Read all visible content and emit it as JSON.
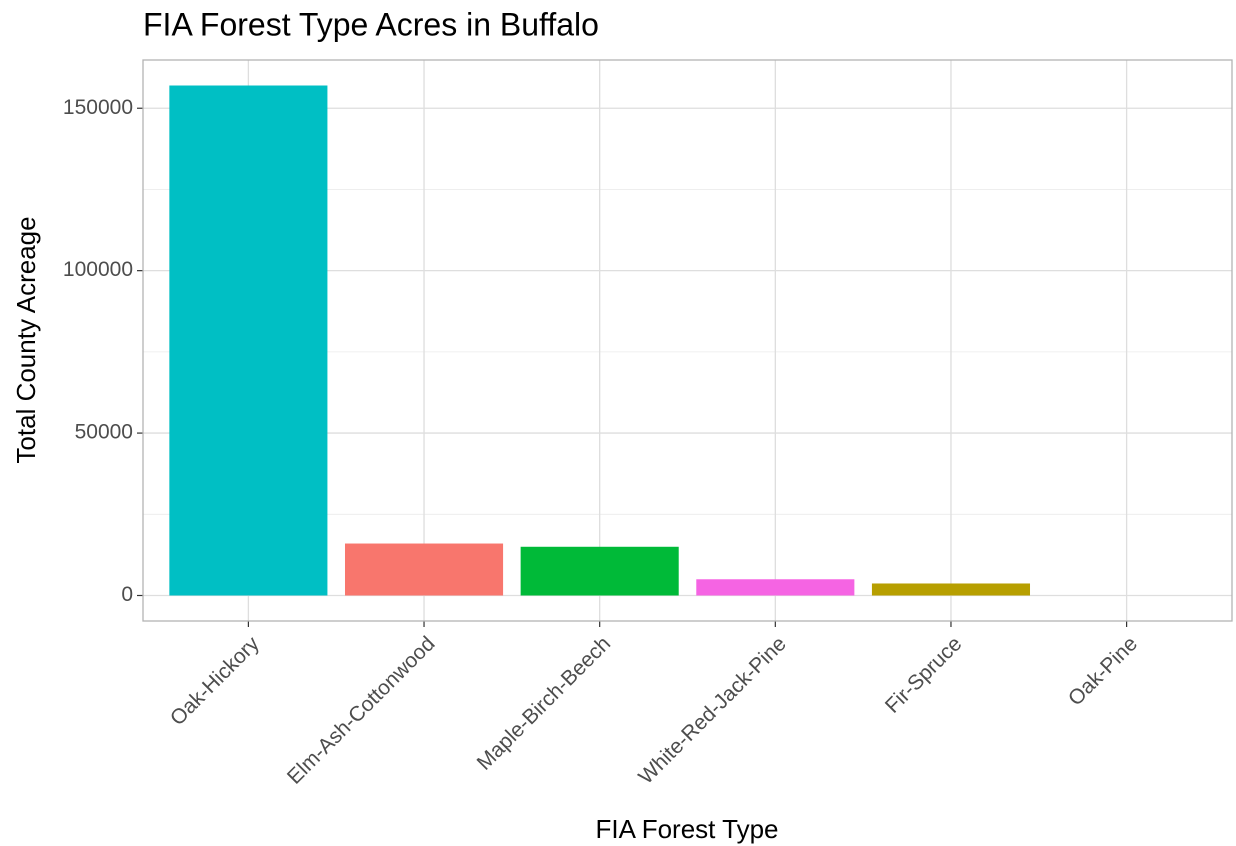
{
  "chart_data": {
    "type": "bar",
    "title": "FIA Forest Type Acres in Buffalo",
    "x_label": "FIA Forest Type",
    "y_label": "Total County Acreage",
    "categories": [
      "Oak-Hickory",
      "Elm-Ash-Cottonwood",
      "Maple-Birch-Beech",
      "White-Red-Jack-Pine",
      "Fir-Spruce",
      "Oak-Pine"
    ],
    "values": [
      157000,
      16000,
      15000,
      5000,
      3700,
      0
    ],
    "colors": [
      "#00BFC4",
      "#F8766D",
      "#00BA38",
      "#F564E3",
      "#B79F00",
      "#619CFF"
    ],
    "ylim": [
      -7850,
      164850
    ],
    "yticks": [
      0,
      50000,
      100000,
      150000
    ],
    "minor_yticks": [
      25000,
      75000,
      125000
    ],
    "grid": true
  }
}
